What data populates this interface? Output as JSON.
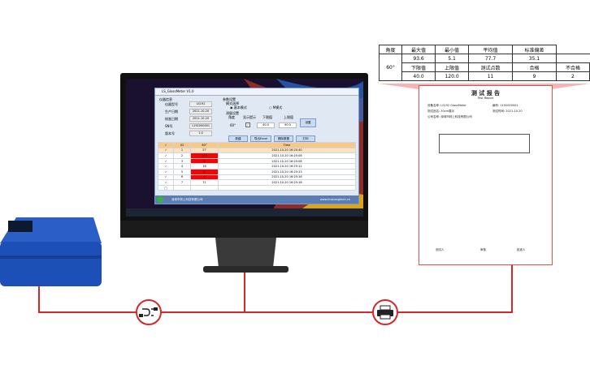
{
  "colors": {
    "accent_line": "#d62828",
    "device_blue": "#1c4fb8",
    "report_pink": "#f7a6a6",
    "out_of_range": "#ff0000"
  },
  "summary_table": {
    "headers": [
      "角度",
      "最大值",
      "最小值",
      "平均值",
      "标准偏差"
    ],
    "angle": "60°",
    "stats": [
      "93.6",
      "5.1",
      "77.7",
      "35.1"
    ],
    "headers2": [
      "下限值",
      "上限值",
      "测试点数",
      "合格",
      "不合格"
    ],
    "values2": [
      "40.0",
      "120.0",
      "11",
      "9",
      "2"
    ]
  },
  "report": {
    "title": "测 试 报 告",
    "subtitle": "Test Report",
    "fields": [
      {
        "label": "设备名称",
        "value": "LS192 GlossMeter"
      },
      {
        "label": "编号",
        "value": "1192000001"
      },
      {
        "label": "测试品名",
        "value": "30cm展示"
      },
      {
        "label": "测试时间",
        "value": "2021-10-20"
      },
      {
        "label": "公司名称",
        "value": "深圳市林上科技有限公司"
      }
    ],
    "footer": [
      "测试人",
      "审核",
      "批准人"
    ]
  },
  "app": {
    "title": "LS_GlossMeter V1.0",
    "info_group": "仪器信息",
    "info": [
      {
        "label": "仪器型号",
        "value": "LS192"
      },
      {
        "label": "生产日期",
        "value": "2021-10-20"
      },
      {
        "label": "校准日期",
        "value": "2021-10-20"
      },
      {
        "label": "SN号",
        "value": "1192000001"
      },
      {
        "label": "版本号",
        "value": "1.0"
      }
    ],
    "param_group": "参数设置",
    "mode_label": "模式选择",
    "mode_basic": "基本模式",
    "mode_m": "M模式",
    "measure_label": "测量设置",
    "measure_headers": [
      "角度",
      "显示提示",
      "下限值",
      "上限值"
    ],
    "angle": "60°",
    "lower": "40.0",
    "upper": "90.0",
    "set_button": "设置",
    "buttons": [
      "新建",
      "导出Excel",
      "删除数据",
      "打印"
    ],
    "columns": [
      "✓",
      "ID",
      "60°",
      "Time"
    ],
    "rows": [
      {
        "id": "1",
        "value": "27",
        "time": "2021-10-20 16:20:40",
        "out": false
      },
      {
        "id": "2",
        "value": "103",
        "time": "2021-10-20 16:25:08",
        "out": true
      },
      {
        "id": "3",
        "value": "0",
        "time": "2021-10-20 16:25:08",
        "out": true
      },
      {
        "id": "4",
        "value": "16",
        "time": "2021-10-20 16:25:11",
        "out": false
      },
      {
        "id": "5",
        "value": "0",
        "time": "2021-10-20 16:25:13",
        "out": true
      },
      {
        "id": "6",
        "value": "0",
        "time": "2021-10-20 16:25:16",
        "out": true
      },
      {
        "id": "7",
        "value": "71",
        "time": "2021-10-20 16:25:18",
        "out": false
      }
    ],
    "status_left": "深圳市林上科技有限公司",
    "status_right": "www.linshangtech.cn"
  }
}
